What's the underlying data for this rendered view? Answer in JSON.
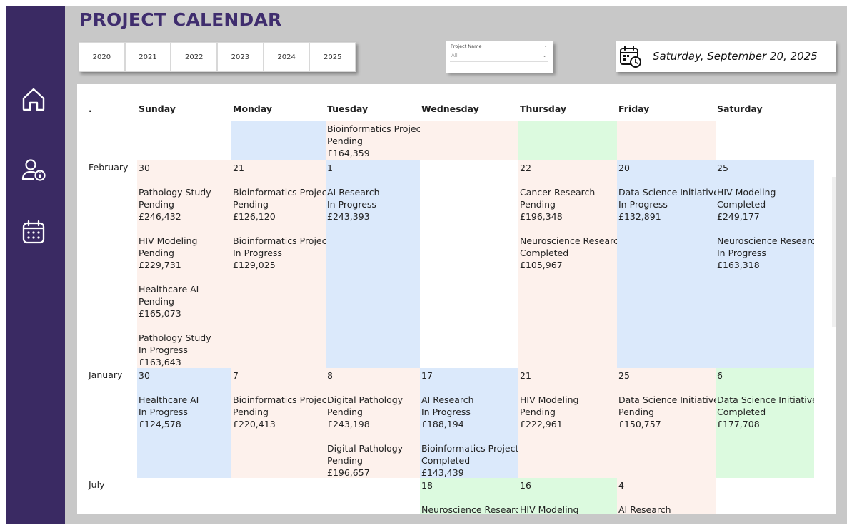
{
  "title": "PROJECT CALENDAR",
  "nav": [
    {
      "icon": "home-icon"
    },
    {
      "icon": "user-info-icon"
    },
    {
      "icon": "calendar-icon"
    }
  ],
  "years": [
    "2020",
    "2021",
    "2022",
    "2023",
    "2024",
    "2025"
  ],
  "filter": {
    "label": "Project Name",
    "value": "All"
  },
  "current_date": "Saturday, September 20, 2025",
  "calendar": {
    "corner": ".",
    "weekdays": [
      "Sunday",
      "Monday",
      "Tuesday",
      "Wednesday",
      "Thursday",
      "Friday",
      "Saturday"
    ],
    "colors": {
      "blue": "#dbe9fb",
      "pink": "#fdf1ec",
      "green": "#dcfadf"
    },
    "rows": [
      {
        "month": "",
        "cells": [
          {
            "day": "",
            "color": "white",
            "entries": []
          },
          {
            "day": "",
            "color": "blue",
            "entries": []
          },
          {
            "day": "",
            "color": "pink",
            "entries": [
              {
                "name": "Bioinformatics Project",
                "status": "Pending",
                "amount": "£164,359"
              }
            ]
          },
          {
            "day": "",
            "color": "pink",
            "entries": []
          },
          {
            "day": "",
            "color": "green",
            "entries": []
          },
          {
            "day": "",
            "color": "pink",
            "entries": []
          },
          {
            "day": "",
            "color": "white",
            "entries": []
          }
        ]
      },
      {
        "month": "February",
        "cells": [
          {
            "day": "30",
            "color": "pink",
            "entries": [
              {
                "name": "Pathology Study",
                "status": "Pending",
                "amount": "£246,432"
              },
              {
                "name": "HIV Modeling",
                "status": "Pending",
                "amount": "£229,731"
              },
              {
                "name": "Healthcare AI",
                "status": "Pending",
                "amount": "£165,073"
              },
              {
                "name": "Pathology Study",
                "status": "In Progress",
                "amount": "£163,643"
              }
            ]
          },
          {
            "day": "21",
            "color": "pink",
            "entries": [
              {
                "name": "Bioinformatics Project",
                "status": "Pending",
                "amount": "£126,120"
              },
              {
                "name": "Bioinformatics Project",
                "status": "In Progress",
                "amount": "£129,025"
              }
            ]
          },
          {
            "day": "1",
            "color": "blue",
            "entries": [
              {
                "name": "AI Research",
                "status": "In Progress",
                "amount": "£243,393"
              }
            ]
          },
          {
            "day": "",
            "color": "white",
            "entries": []
          },
          {
            "day": "22",
            "color": "pink",
            "entries": [
              {
                "name": "Cancer Research",
                "status": "Pending",
                "amount": "£196,348"
              },
              {
                "name": "Neuroscience Research",
                "status": "Completed",
                "amount": "£105,967"
              }
            ]
          },
          {
            "day": "20",
            "color": "blue",
            "entries": [
              {
                "name": "Data Science Initiative",
                "status": "In Progress",
                "amount": "£132,891"
              }
            ]
          },
          {
            "day": "25",
            "color": "blue",
            "entries": [
              {
                "name": "HIV Modeling",
                "status": "Completed",
                "amount": "£249,177"
              },
              {
                "name": "Neuroscience Research",
                "status": "In Progress",
                "amount": "£163,318"
              }
            ]
          }
        ]
      },
      {
        "month": "January",
        "cells": [
          {
            "day": "30",
            "color": "blue",
            "entries": [
              {
                "name": "Healthcare AI",
                "status": "In Progress",
                "amount": "£124,578"
              }
            ]
          },
          {
            "day": "7",
            "color": "pink",
            "entries": [
              {
                "name": "Bioinformatics Project",
                "status": "Pending",
                "amount": "£220,413"
              }
            ]
          },
          {
            "day": "8",
            "color": "pink",
            "entries": [
              {
                "name": "Digital Pathology",
                "status": "Pending",
                "amount": "£243,198"
              },
              {
                "name": "Digital Pathology",
                "status": "Pending",
                "amount": "£196,657"
              }
            ]
          },
          {
            "day": "17",
            "color": "blue",
            "entries": [
              {
                "name": "AI Research",
                "status": "In Progress",
                "amount": "£188,194"
              },
              {
                "name": "Bioinformatics Project",
                "status": "Completed",
                "amount": "£143,439"
              }
            ]
          },
          {
            "day": "21",
            "color": "pink",
            "entries": [
              {
                "name": "HIV Modeling",
                "status": "Pending",
                "amount": "£222,961"
              }
            ]
          },
          {
            "day": "25",
            "color": "pink",
            "entries": [
              {
                "name": "Data Science Initiative",
                "status": "Pending",
                "amount": "£150,757"
              }
            ]
          },
          {
            "day": "6",
            "color": "green",
            "entries": [
              {
                "name": "Data Science Initiative",
                "status": "Completed",
                "amount": "£177,708"
              }
            ]
          }
        ]
      },
      {
        "month": "July",
        "cells": [
          {
            "day": "",
            "color": "white",
            "entries": []
          },
          {
            "day": "",
            "color": "white",
            "entries": []
          },
          {
            "day": "",
            "color": "white",
            "entries": []
          },
          {
            "day": "18",
            "color": "green",
            "entries": [
              {
                "name": "Neuroscience Research",
                "status": "",
                "amount": ""
              }
            ]
          },
          {
            "day": "16",
            "color": "green",
            "entries": [
              {
                "name": "HIV Modeling",
                "status": "",
                "amount": ""
              }
            ]
          },
          {
            "day": "4",
            "color": "pink",
            "entries": [
              {
                "name": "AI Research",
                "status": "",
                "amount": ""
              }
            ]
          },
          {
            "day": "",
            "color": "white",
            "entries": []
          }
        ]
      }
    ]
  }
}
